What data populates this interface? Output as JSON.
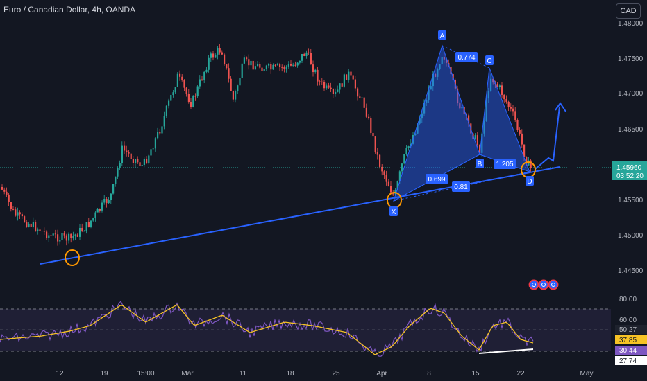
{
  "header": {
    "title": "Euro / Canadian Dollar, 4h, OANDA",
    "currency_button": "CAD"
  },
  "price_axis": {
    "ticks": [
      "1.48000",
      "1.47500",
      "1.47000",
      "1.46500",
      "1.46000",
      "1.45500",
      "1.45000",
      "1.44500"
    ],
    "current_price": "1.45960",
    "countdown": "03:52:20"
  },
  "rsi_axis": {
    "ticks": [
      "80.00",
      "60.00",
      "50.27",
      "37.85",
      "30.44",
      "27.74"
    ]
  },
  "time_axis": {
    "ticks": [
      "12",
      "19",
      "15:00",
      "Mar",
      "11",
      "18",
      "25",
      "Apr",
      "8",
      "15",
      "22",
      "May"
    ]
  },
  "pattern": {
    "points": [
      "X",
      "A",
      "B",
      "C",
      "D"
    ],
    "ratios": [
      "0.774",
      "0.699",
      "0.81",
      "1.205"
    ]
  },
  "colors": {
    "background": "#131722",
    "bull": "#26a69a",
    "bear": "#ef5350",
    "trendline": "#2962ff",
    "pattern_fill": "#2962ff",
    "rsi_line": "#7e57c2",
    "rsi_ma": "#f7c325",
    "marker": "#ff9800"
  },
  "icons": {
    "alerts": [
      "alert-icon",
      "alert-icon",
      "alert-icon"
    ]
  }
}
